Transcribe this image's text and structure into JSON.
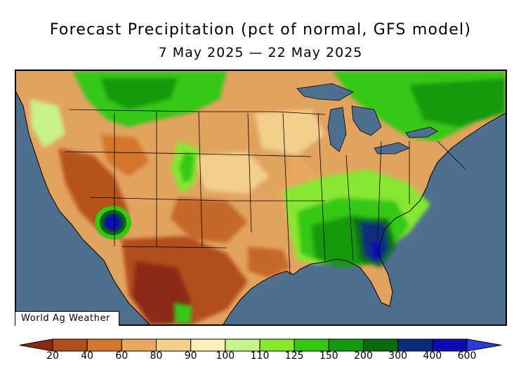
{
  "title": "Forecast Precipitation (pct of normal, GFS model)",
  "subtitle": "7 May 2025 — 22 May 2025",
  "credit": "World Ag Weather",
  "legend": {
    "ticks": [
      "20",
      "40",
      "60",
      "80",
      "90",
      "100",
      "110",
      "125",
      "150",
      "200",
      "300",
      "400",
      "600"
    ],
    "colors": [
      "#8b2a12",
      "#b24d1f",
      "#d4762c",
      "#e8a85f",
      "#f3cf8c",
      "#fbf0b7",
      "#c8f28a",
      "#87e830",
      "#34c814",
      "#139a10",
      "#0b6a0c",
      "#0a2d7a",
      "#0c0cb0",
      "#2b3bd8"
    ]
  },
  "map": {
    "ocean_color": "#4f6f8f",
    "lake_color": "#4f6f8f"
  }
}
